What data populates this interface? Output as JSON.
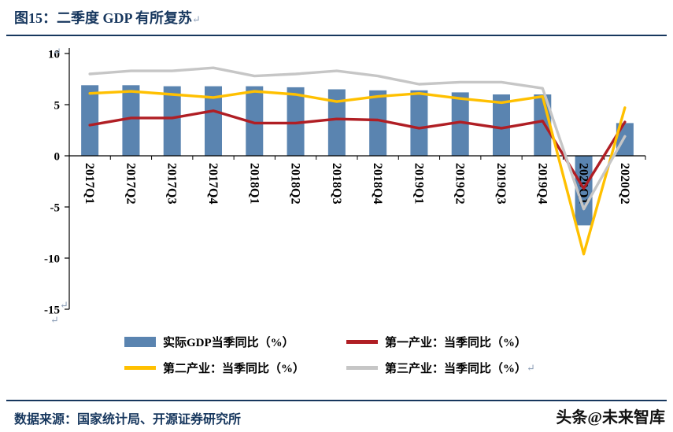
{
  "title": {
    "text": "图15：二季度 GDP 有所复苏"
  },
  "marks": {
    "return": "↵"
  },
  "chart_data": {
    "type": "bar",
    "subtype": "bar+line combo",
    "categories": [
      "2017Q1",
      "2017Q2",
      "2017Q3",
      "2017Q4",
      "2018Q1",
      "2018Q2",
      "2018Q3",
      "2018Q4",
      "2019Q1",
      "2019Q2",
      "2019Q3",
      "2019Q4",
      "2020Q1",
      "2020Q2"
    ],
    "series": [
      {
        "name": "实际GDP当季同比（%）",
        "type": "bar",
        "color": "#5a84b0",
        "values": [
          6.9,
          6.9,
          6.8,
          6.8,
          6.8,
          6.7,
          6.5,
          6.4,
          6.4,
          6.2,
          6.0,
          6.0,
          -6.8,
          3.2
        ]
      },
      {
        "name": "第一产业：当季同比（%）",
        "type": "line",
        "color": "#b01e24",
        "values": [
          3.0,
          3.7,
          3.7,
          4.4,
          3.2,
          3.2,
          3.6,
          3.5,
          2.7,
          3.3,
          2.7,
          3.4,
          -3.2,
          3.3
        ]
      },
      {
        "name": "第二产业：当季同比（%）",
        "type": "line",
        "color": "#ffc000",
        "values": [
          6.1,
          6.3,
          6.0,
          5.7,
          6.3,
          6.0,
          5.3,
          5.8,
          6.1,
          5.6,
          5.2,
          5.8,
          -9.6,
          4.7
        ]
      },
      {
        "name": "第三产业：当季同比（%）",
        "type": "line",
        "color": "#c6c6c6",
        "values": [
          8.0,
          8.3,
          8.3,
          8.6,
          7.8,
          8.0,
          8.3,
          7.8,
          7.0,
          7.2,
          7.2,
          6.6,
          -5.2,
          1.9
        ]
      }
    ],
    "ylim": [
      -15,
      10
    ],
    "yticks": [
      10,
      5,
      0,
      -5,
      -10,
      -15
    ],
    "grid": false,
    "legend_position": "bottom",
    "x_label_rotation": 90
  },
  "footer": {
    "source": "数据来源：国家统计局、开源证券研究所",
    "watermark": "头条@未来智库"
  }
}
